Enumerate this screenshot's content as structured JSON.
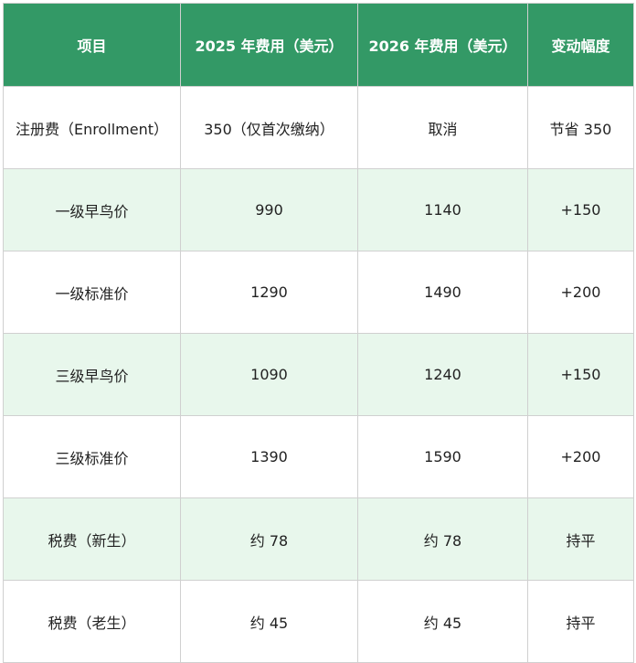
{
  "table": {
    "header": [
      "项目",
      "2025 年费用（美元）",
      "2026 年费用（美元）",
      "变动幅度"
    ],
    "rows": [
      [
        "注册费（Enrollment）",
        "350（仅首次缴纳）",
        "取消",
        "节省 350"
      ],
      [
        "一级早鸟价",
        "990",
        "1140",
        "+150"
      ],
      [
        "一级标准价",
        "1290",
        "1490",
        "+200"
      ],
      [
        "三级早鸟价",
        "1090",
        "1240",
        "+150"
      ],
      [
        "三级标准价",
        "1390",
        "1590",
        "+200"
      ],
      [
        "税费（新生）",
        "约 78",
        "约 78",
        "持平"
      ],
      [
        "税费（老生）",
        "约 45",
        "约 45",
        "持平"
      ]
    ]
  }
}
